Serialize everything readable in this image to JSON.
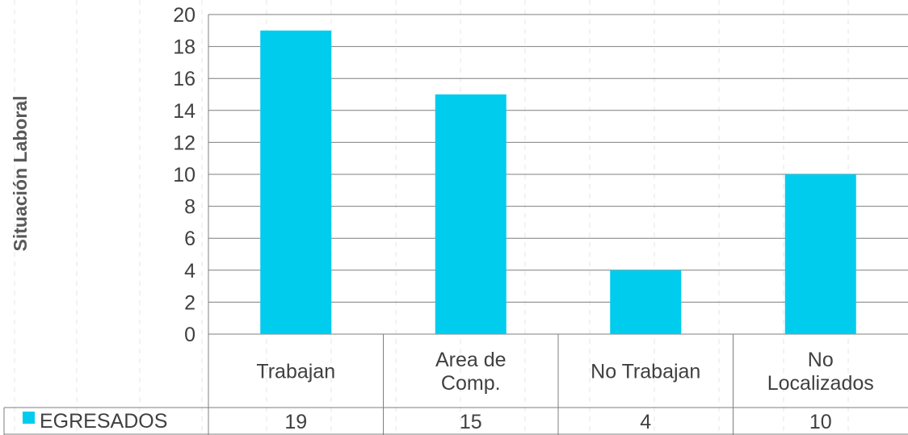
{
  "chart_data": {
    "type": "bar",
    "ylabel": "Situación Laboral",
    "categories": [
      "Trabajan",
      "Area de Comp.",
      "No Trabajan",
      "No Localizados"
    ],
    "category_lines": [
      [
        "Trabajan"
      ],
      [
        "Area de",
        "Comp."
      ],
      [
        "No Trabajan"
      ],
      [
        "No",
        "Localizados"
      ]
    ],
    "series": [
      {
        "name": "EGRESADOS",
        "values": [
          19,
          15,
          4,
          10
        ]
      }
    ],
    "data_table_values": [
      "19",
      "15",
      "4",
      "10"
    ],
    "y_ticks": [
      "0",
      "2",
      "4",
      "6",
      "8",
      "10",
      "12",
      "14",
      "16",
      "18",
      "20"
    ],
    "ylim": [
      0,
      20
    ],
    "grid": true,
    "legend_placement": "data-table",
    "bar_color": "#00CCEE",
    "grid_color": "#7F7F7F",
    "text_color": "#404040",
    "ylabel_color": "#595959"
  }
}
